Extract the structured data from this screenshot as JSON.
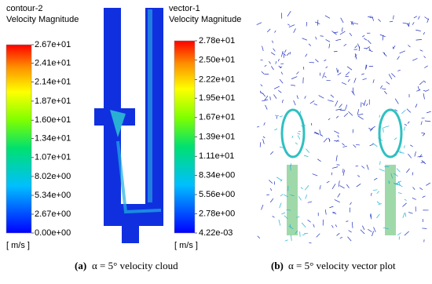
{
  "panels": [
    {
      "legend": {
        "title": "contour-2",
        "subtitle": "Velocity Magnitude",
        "unit": "[ m/s ]",
        "ticks": [
          {
            "value": 26.7,
            "label": "2.67e+01"
          },
          {
            "value": 24.1,
            "label": "2.41e+01"
          },
          {
            "value": 21.4,
            "label": "2.14e+01"
          },
          {
            "value": 18.7,
            "label": "1.87e+01"
          },
          {
            "value": 16.0,
            "label": "1.60e+01"
          },
          {
            "value": 13.4,
            "label": "1.34e+01"
          },
          {
            "value": 10.7,
            "label": "1.07e+01"
          },
          {
            "value": 8.02,
            "label": "8.02e+00"
          },
          {
            "value": 5.34,
            "label": "5.34e+00"
          },
          {
            "value": 2.67,
            "label": "2.67e+00"
          },
          {
            "value": 0,
            "label": "0.00e+00"
          }
        ]
      },
      "caption": {
        "label": "(a)",
        "text": "α = 5° velocity cloud"
      }
    },
    {
      "legend": {
        "title": "vector-1",
        "subtitle": "Velocity Magnitude",
        "unit": "[ m/s ]",
        "ticks": [
          {
            "value": 27.8,
            "label": "2.78e+01"
          },
          {
            "value": 25.0,
            "label": "2.50e+01"
          },
          {
            "value": 22.2,
            "label": "2.22e+01"
          },
          {
            "value": 19.5,
            "label": "1.95e+01"
          },
          {
            "value": 16.7,
            "label": "1.67e+01"
          },
          {
            "value": 13.9,
            "label": "1.39e+01"
          },
          {
            "value": 11.1,
            "label": "1.11e+01"
          },
          {
            "value": 8.34,
            "label": "8.34e+00"
          },
          {
            "value": 5.56,
            "label": "5.56e+00"
          },
          {
            "value": 2.78,
            "label": "2.78e+00"
          },
          {
            "value": 0.00422,
            "label": "4.22e-03"
          }
        ]
      },
      "caption": {
        "label": "(b)",
        "text": "α = 5° velocity vector plot"
      }
    }
  ]
}
